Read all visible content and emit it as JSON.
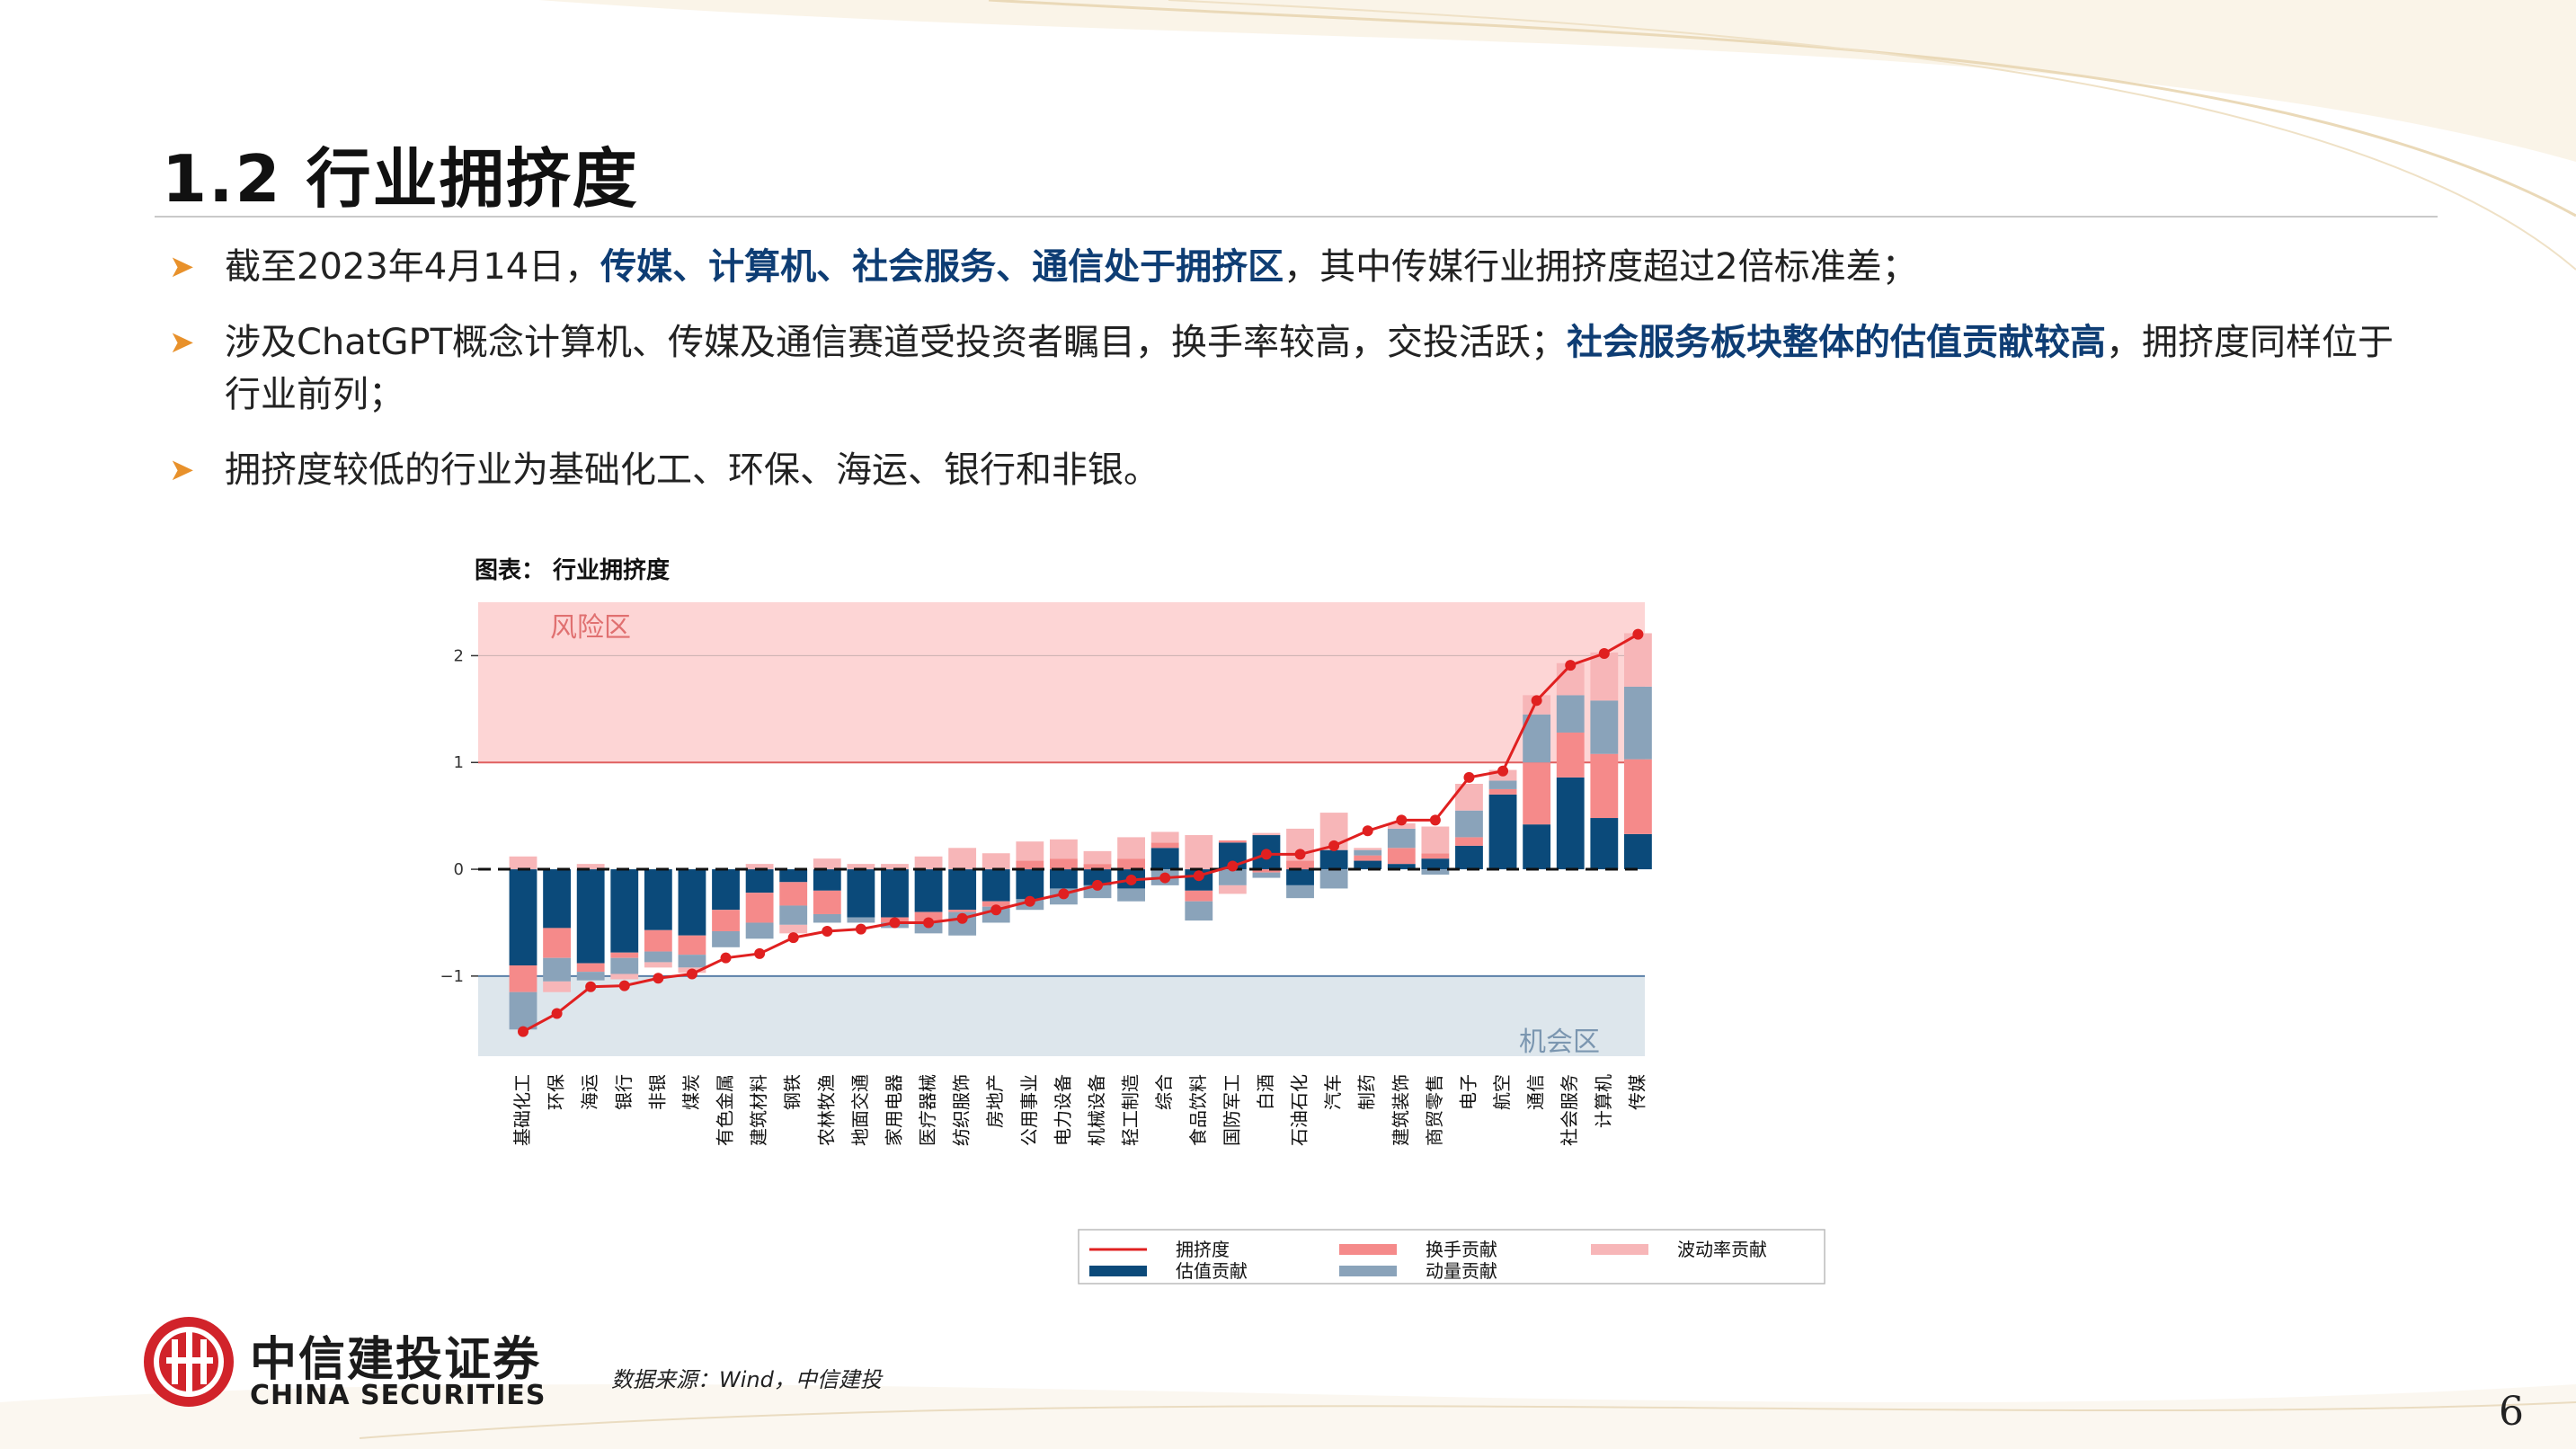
{
  "title": "1.2 行业拥挤度",
  "bullets": [
    {
      "pre": "截至2023年4月14日，",
      "hl": "传媒、计算机、社会服务、通信处于拥挤区",
      "post": "，其中传媒行业拥挤度超过2倍标准差；"
    },
    {
      "pre": "涉及ChatGPT概念计算机、传媒及通信赛道受投资者瞩目，换手率较高，交投活跃；",
      "hl": "社会服务板块整体的估值贡献较高",
      "post": "，拥挤度同样位于行业前列；"
    },
    {
      "pre": "拥挤度较低的行业为基础化工、环保、海运、银行和非银。",
      "hl": "",
      "post": ""
    }
  ],
  "chart_caption": "图表：  行业拥挤度",
  "source": "数据来源：Wind，中信建投",
  "logo": {
    "cn": "中信建投证券",
    "en": "CHINA SECURITIES"
  },
  "page_number": "6",
  "colors": {
    "risk_zone": "#fdd5d5",
    "opportunity_zone": "#dde6ec",
    "crowding_line": "#e02020",
    "valuation": "#0b4a7a",
    "turnover": "#f58a8a",
    "momentum": "#8aa3ba",
    "volatility": "#f7b6b8"
  },
  "chart_data": {
    "type": "bar",
    "ylim": [
      -1.75,
      2.5
    ],
    "yticks": [
      -1,
      0,
      1,
      2
    ],
    "zone_labels": {
      "risk": "风险区",
      "opportunity": "机会区"
    },
    "thresholds": [
      1,
      -1
    ],
    "categories": [
      "基础化工",
      "环保",
      "海运",
      "银行",
      "非银",
      "煤炭",
      "有色金属",
      "建筑材料",
      "钢铁",
      "农林牧渔",
      "地面交通",
      "家用电器",
      "医疗器械",
      "纺织服饰",
      "房地产",
      "公用事业",
      "电力设备",
      "机械设备",
      "轻工制造",
      "综合",
      "食品饮料",
      "国防军工",
      "白酒",
      "石油石化",
      "汽车",
      "制药",
      "建筑装饰",
      "商贸零售",
      "电子",
      "航空",
      "通信",
      "社会服务",
      "计算机",
      "传媒"
    ],
    "series": [
      {
        "name": "估值贡献",
        "values": [
          -0.9,
          -0.55,
          -0.88,
          -0.78,
          -0.57,
          -0.62,
          -0.38,
          -0.22,
          -0.12,
          -0.2,
          -0.45,
          -0.45,
          -0.4,
          -0.38,
          -0.3,
          -0.28,
          -0.18,
          -0.15,
          -0.18,
          0.2,
          -0.2,
          0.25,
          0.32,
          -0.15,
          0.18,
          0.08,
          0.05,
          0.1,
          0.22,
          0.7,
          0.42,
          0.86,
          0.48,
          0.33
        ]
      },
      {
        "name": "换手贡献",
        "values": [
          -0.25,
          -0.28,
          -0.08,
          -0.05,
          -0.2,
          -0.18,
          -0.2,
          -0.28,
          -0.22,
          -0.22,
          0,
          -0.05,
          -0.1,
          -0.02,
          -0.05,
          0.08,
          0.1,
          0.05,
          0.1,
          0.05,
          -0.1,
          0.02,
          -0.03,
          0.08,
          0,
          0.05,
          0.15,
          0.05,
          0.08,
          0.05,
          0.58,
          0.42,
          0.6,
          0.7
        ]
      },
      {
        "name": "动量贡献",
        "values": [
          -0.35,
          -0.22,
          -0.08,
          -0.15,
          -0.1,
          -0.12,
          -0.15,
          -0.15,
          -0.18,
          -0.08,
          -0.05,
          -0.05,
          -0.1,
          -0.22,
          -0.15,
          -0.1,
          -0.15,
          -0.12,
          -0.12,
          -0.15,
          -0.18,
          -0.15,
          -0.05,
          -0.12,
          -0.18,
          0.05,
          0.18,
          -0.05,
          0.25,
          0.08,
          0.45,
          0.35,
          0.5,
          0.68
        ]
      },
      {
        "name": "波动率贡献",
        "values": [
          0.12,
          -0.1,
          0.05,
          -0.05,
          -0.05,
          -0.05,
          0,
          0.05,
          -0.08,
          0.1,
          0.05,
          0.05,
          0.12,
          0.2,
          0.15,
          0.18,
          0.18,
          0.12,
          0.2,
          0.1,
          0.32,
          -0.08,
          0.02,
          0.3,
          0.35,
          0.02,
          0.05,
          0.25,
          0.25,
          0.1,
          0.18,
          0.3,
          0.45,
          0.5
        ]
      },
      {
        "name": "拥挤度",
        "values": [
          -1.52,
          -1.35,
          -1.1,
          -1.09,
          -1.02,
          -0.98,
          -0.83,
          -0.79,
          -0.64,
          -0.58,
          -0.56,
          -0.5,
          -0.5,
          -0.46,
          -0.38,
          -0.3,
          -0.23,
          -0.15,
          -0.1,
          -0.08,
          -0.06,
          0.03,
          0.14,
          0.14,
          0.22,
          0.36,
          0.46,
          0.46,
          0.86,
          0.92,
          1.58,
          1.91,
          2.02,
          2.2
        ]
      }
    ],
    "legend": {
      "position": "bottom",
      "entries": [
        "拥挤度",
        "换手贡献",
        "波动率贡献",
        "估值贡献",
        "动量贡献"
      ]
    }
  }
}
